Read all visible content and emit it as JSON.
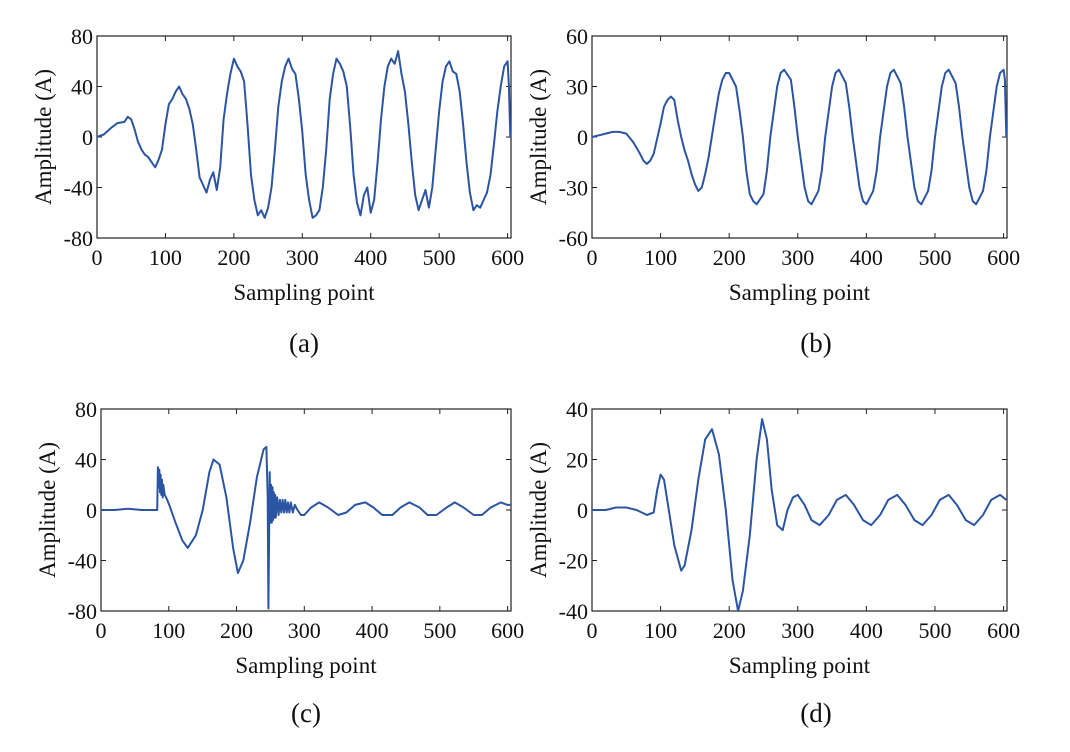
{
  "colors": {
    "line": "#2b55a3",
    "axis": "#222222",
    "text": "#111111"
  },
  "chart_data": [
    {
      "type": "line",
      "panel_label": "(a)",
      "xlabel": "Sampling point",
      "ylabel": "Amplitude (A)",
      "xlim": [
        0,
        605
      ],
      "ylim": [
        -80,
        80
      ],
      "xticks": [
        0,
        100,
        200,
        300,
        400,
        500,
        600
      ],
      "yticks": [
        -80,
        -40,
        0,
        40,
        80
      ],
      "grid": false,
      "series": [
        {
          "x": [
            0,
            10,
            20,
            30,
            40,
            45,
            50,
            55,
            60,
            65,
            70,
            75,
            80,
            85,
            90,
            95,
            100,
            105,
            110,
            115,
            120,
            125,
            130,
            135,
            140,
            145,
            150,
            155,
            160,
            165,
            170,
            175,
            180,
            185,
            190,
            195,
            200,
            205,
            210,
            215,
            220,
            225,
            230,
            235,
            240,
            245,
            250,
            255,
            260,
            265,
            270,
            275,
            280,
            285,
            290,
            295,
            300,
            305,
            310,
            315,
            320,
            325,
            330,
            335,
            340,
            345,
            350,
            355,
            360,
            365,
            370,
            375,
            380,
            385,
            390,
            395,
            400,
            405,
            410,
            415,
            420,
            425,
            430,
            435,
            440,
            445,
            450,
            455,
            460,
            465,
            470,
            475,
            480,
            485,
            490,
            495,
            500,
            505,
            510,
            515,
            520,
            525,
            530,
            535,
            540,
            545,
            550,
            555,
            560,
            565,
            570,
            575,
            580,
            585,
            590,
            595,
            600,
            602,
            604
          ],
          "y": [
            0,
            2,
            7,
            11,
            12,
            16,
            14,
            6,
            -4,
            -10,
            -14,
            -16,
            -20,
            -24,
            -18,
            -10,
            10,
            26,
            30,
            36,
            40,
            34,
            30,
            22,
            10,
            -10,
            -32,
            -38,
            -44,
            -34,
            -28,
            -42,
            -24,
            14,
            34,
            50,
            62,
            56,
            52,
            44,
            10,
            -30,
            -50,
            -62,
            -58,
            -64,
            -56,
            -40,
            -10,
            24,
            44,
            56,
            62,
            54,
            50,
            30,
            4,
            -30,
            -50,
            -64,
            -62,
            -58,
            -40,
            -10,
            30,
            50,
            62,
            58,
            52,
            40,
            8,
            -30,
            -52,
            -62,
            -46,
            -40,
            -60,
            -50,
            -20,
            14,
            40,
            56,
            62,
            58,
            68,
            50,
            36,
            10,
            -20,
            -46,
            -58,
            -50,
            -42,
            -56,
            -40,
            -10,
            20,
            44,
            56,
            60,
            52,
            50,
            36,
            10,
            -20,
            -44,
            -58,
            -54,
            -56,
            -50,
            -44,
            -30,
            -6,
            20,
            40,
            56,
            60,
            40,
            0
          ]
        }
      ]
    },
    {
      "type": "line",
      "panel_label": "(b)",
      "xlabel": "Sampling point",
      "ylabel": "Amplitude (A)",
      "xlim": [
        0,
        605
      ],
      "ylim": [
        -60,
        60
      ],
      "xticks": [
        0,
        100,
        200,
        300,
        400,
        500,
        600
      ],
      "yticks": [
        -60,
        -30,
        0,
        30,
        60
      ],
      "grid": false,
      "series": [
        {
          "x": [
            0,
            10,
            20,
            30,
            40,
            50,
            60,
            70,
            75,
            80,
            85,
            90,
            100,
            105,
            110,
            115,
            120,
            125,
            130,
            135,
            140,
            145,
            150,
            155,
            160,
            165,
            170,
            180,
            185,
            190,
            195,
            200,
            210,
            215,
            220,
            225,
            230,
            235,
            240,
            250,
            255,
            260,
            270,
            275,
            280,
            290,
            295,
            300,
            310,
            315,
            320,
            330,
            335,
            340,
            350,
            355,
            360,
            370,
            375,
            380,
            390,
            395,
            400,
            410,
            415,
            420,
            430,
            435,
            440,
            450,
            455,
            460,
            470,
            475,
            480,
            490,
            495,
            500,
            510,
            515,
            520,
            530,
            535,
            540,
            550,
            555,
            560,
            570,
            575,
            580,
            590,
            595,
            600,
            602,
            604
          ],
          "y": [
            0,
            1,
            2,
            3,
            3,
            2,
            -3,
            -10,
            -14,
            -16,
            -14,
            -10,
            8,
            18,
            22,
            24,
            22,
            10,
            0,
            -8,
            -14,
            -22,
            -28,
            -32,
            -30,
            -22,
            -12,
            14,
            26,
            34,
            38,
            38,
            30,
            16,
            0,
            -20,
            -34,
            -38,
            -40,
            -34,
            -20,
            0,
            30,
            38,
            40,
            34,
            18,
            0,
            -30,
            -38,
            -40,
            -32,
            -20,
            0,
            30,
            38,
            40,
            32,
            18,
            0,
            -30,
            -38,
            -40,
            -32,
            -20,
            0,
            30,
            38,
            40,
            32,
            18,
            0,
            -30,
            -38,
            -40,
            -32,
            -20,
            0,
            30,
            38,
            40,
            32,
            18,
            0,
            -30,
            -38,
            -40,
            -32,
            -20,
            0,
            30,
            38,
            40,
            34,
            0
          ]
        }
      ]
    },
    {
      "type": "line",
      "panel_label": "(c)",
      "xlabel": "Sampling point",
      "ylabel": "Amplitude (A)",
      "xlim": [
        0,
        605
      ],
      "ylim": [
        -80,
        80
      ],
      "xticks": [
        0,
        100,
        200,
        300,
        400,
        500,
        600
      ],
      "yticks": [
        -80,
        -40,
        0,
        40,
        80
      ],
      "grid": false,
      "series": [
        {
          "x": [
            0,
            20,
            40,
            60,
            80,
            83,
            84,
            85,
            86,
            87,
            88,
            89,
            90,
            91,
            92,
            94,
            96,
            100,
            110,
            120,
            128,
            140,
            150,
            160,
            166,
            175,
            185,
            195,
            202,
            210,
            220,
            230,
            240,
            244,
            246,
            247,
            248,
            249,
            250,
            251,
            252,
            253,
            254,
            255,
            256,
            257,
            258,
            260,
            262,
            264,
            266,
            268,
            270,
            272,
            274,
            276,
            278,
            280,
            283,
            286,
            290,
            295,
            300,
            310,
            322,
            335,
            350,
            362,
            375,
            390,
            402,
            415,
            430,
            442,
            455,
            470,
            482,
            495,
            510,
            522,
            535,
            550,
            562,
            575,
            590,
            600,
            604
          ],
          "y": [
            0,
            0,
            1,
            0,
            0,
            0,
            34,
            18,
            32,
            14,
            28,
            12,
            24,
            10,
            20,
            12,
            10,
            5,
            -10,
            -24,
            -30,
            -20,
            0,
            30,
            40,
            36,
            10,
            -30,
            -50,
            -40,
            -10,
            26,
            48,
            50,
            10,
            -78,
            -20,
            30,
            -10,
            20,
            -10,
            18,
            -8,
            14,
            -6,
            12,
            -6,
            10,
            -4,
            8,
            -2,
            8,
            -2,
            8,
            -2,
            6,
            -2,
            6,
            -2,
            4,
            0,
            -4,
            -4,
            2,
            6,
            2,
            -4,
            -2,
            4,
            6,
            2,
            -4,
            -4,
            2,
            6,
            2,
            -4,
            -4,
            2,
            6,
            2,
            -4,
            -4,
            2,
            6,
            4,
            4
          ]
        }
      ]
    },
    {
      "type": "line",
      "panel_label": "(d)",
      "xlabel": "Sampling point",
      "ylabel": "Amplitude (A)",
      "xlim": [
        0,
        605
      ],
      "ylim": [
        -40,
        40
      ],
      "xticks": [
        0,
        100,
        200,
        300,
        400,
        500,
        600
      ],
      "yticks": [
        -40,
        -20,
        0,
        20,
        40
      ],
      "grid": false,
      "series": [
        {
          "x": [
            0,
            20,
            35,
            50,
            65,
            80,
            90,
            95,
            100,
            105,
            112,
            120,
            130,
            135,
            145,
            155,
            165,
            175,
            185,
            195,
            205,
            213,
            220,
            230,
            240,
            248,
            255,
            262,
            270,
            278,
            285,
            293,
            300,
            310,
            320,
            332,
            345,
            357,
            370,
            382,
            395,
            407,
            420,
            432,
            445,
            457,
            470,
            482,
            495,
            507,
            520,
            532,
            545,
            557,
            570,
            582,
            595,
            604
          ],
          "y": [
            0,
            0,
            1,
            1,
            0,
            -2,
            -1,
            8,
            14,
            12,
            0,
            -14,
            -24,
            -22,
            -8,
            12,
            28,
            32,
            22,
            0,
            -28,
            -40,
            -32,
            -10,
            20,
            36,
            28,
            8,
            -6,
            -8,
            0,
            5,
            6,
            2,
            -4,
            -6,
            -2,
            4,
            6,
            2,
            -4,
            -6,
            -2,
            4,
            6,
            2,
            -4,
            -6,
            -2,
            4,
            6,
            2,
            -4,
            -6,
            -2,
            4,
            6,
            4
          ]
        }
      ]
    }
  ]
}
